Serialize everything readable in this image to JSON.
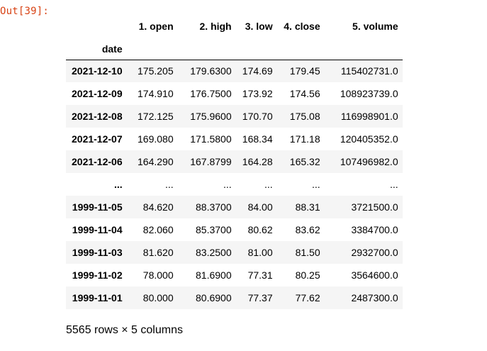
{
  "prompt": "Out[39]:",
  "index_name": "date",
  "columns": [
    "1. open",
    "2. high",
    "3. low",
    "4. close",
    "5. volume"
  ],
  "rows": [
    {
      "date": "2021-12-10",
      "cells": [
        "175.205",
        "179.6300",
        "174.69",
        "179.45",
        "115402731.0"
      ]
    },
    {
      "date": "2021-12-09",
      "cells": [
        "174.910",
        "176.7500",
        "173.92",
        "174.56",
        "108923739.0"
      ]
    },
    {
      "date": "2021-12-08",
      "cells": [
        "172.125",
        "175.9600",
        "170.70",
        "175.08",
        "116998901.0"
      ]
    },
    {
      "date": "2021-12-07",
      "cells": [
        "169.080",
        "171.5800",
        "168.34",
        "171.18",
        "120405352.0"
      ]
    },
    {
      "date": "2021-12-06",
      "cells": [
        "164.290",
        "167.8799",
        "164.28",
        "165.32",
        "107496982.0"
      ]
    },
    {
      "date": "...",
      "cells": [
        "...",
        "...",
        "...",
        "...",
        "..."
      ]
    },
    {
      "date": "1999-11-05",
      "cells": [
        "84.620",
        "88.3700",
        "84.00",
        "88.31",
        "3721500.0"
      ]
    },
    {
      "date": "1999-11-04",
      "cells": [
        "82.060",
        "85.3700",
        "80.62",
        "83.62",
        "3384700.0"
      ]
    },
    {
      "date": "1999-11-03",
      "cells": [
        "81.620",
        "83.2500",
        "81.00",
        "81.50",
        "2932700.0"
      ]
    },
    {
      "date": "1999-11-02",
      "cells": [
        "78.000",
        "81.6900",
        "77.31",
        "80.25",
        "3564600.0"
      ]
    },
    {
      "date": "1999-11-01",
      "cells": [
        "80.000",
        "80.6900",
        "77.37",
        "77.62",
        "2487300.0"
      ]
    }
  ],
  "shape_text": "5565 rows × 5 columns"
}
